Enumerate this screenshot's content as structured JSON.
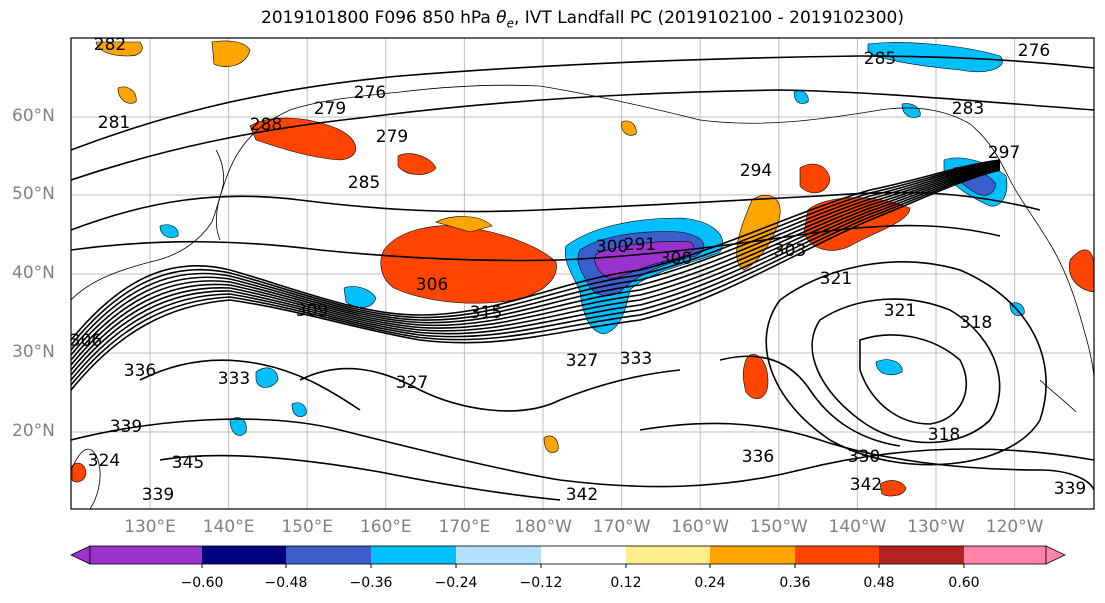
{
  "title": {
    "prefix": "2019101800 F096 850 hPa ",
    "theta": "θ",
    "sub": "e",
    "suffix": ", IVT Landfall PC (2019102100 - 2019102300)"
  },
  "axes": {
    "lat_labels": [
      "20°N",
      "30°N",
      "40°N",
      "50°N",
      "60°N"
    ],
    "lon_labels": [
      "130°E",
      "140°E",
      "150°E",
      "160°E",
      "170°E",
      "180°W",
      "170°W",
      "160°W",
      "150°W",
      "140°W",
      "130°W",
      "120°W"
    ]
  },
  "colorbar": {
    "colors": [
      "#9a32cd",
      "#000080",
      "#3a5fcd",
      "#00bfff",
      "#b0e2ff",
      "#ffffff",
      "#ffec8b",
      "#ffa500",
      "#ff4500",
      "#b22222",
      "#ff82ab"
    ],
    "tick_labels": [
      "−0.60",
      "−0.48",
      "−0.36",
      "−0.24",
      "−0.12",
      "0.12",
      "0.24",
      "0.36",
      "0.48",
      "0.60"
    ]
  },
  "contour_labels": [
    "282",
    "276",
    "279",
    "285",
    "276",
    "283",
    "281",
    "288",
    "279",
    "285",
    "297",
    "294",
    "291",
    "300",
    "303",
    "300",
    "306",
    "309",
    "315",
    "321",
    "321",
    "318",
    "306",
    "336",
    "333",
    "327",
    "327",
    "333",
    "339",
    "345",
    "339",
    "342",
    "336",
    "330",
    "318",
    "342",
    "339",
    "324"
  ],
  "chart_data": {
    "type": "map",
    "title": "2019101800 F096 850 hPa θe, IVT Landfall PC (2019102100 - 2019102300)",
    "field": "850 hPa equivalent potential temperature contours with shaded IVT landfall PC",
    "shading_levels": [
      -0.6,
      -0.48,
      -0.36,
      -0.24,
      -0.12,
      0.12,
      0.24,
      0.36,
      0.48,
      0.6
    ],
    "extent": {
      "lon_min": 120,
      "lon_max": 242,
      "lat_min": 10,
      "lat_max": 70
    },
    "grid": true
  }
}
